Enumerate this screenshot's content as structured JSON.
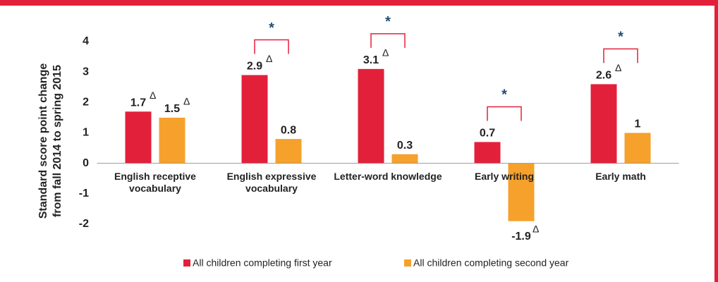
{
  "chart_data": {
    "type": "bar",
    "y_label": [
      "Standard score point change",
      "from fall 2014 to spring 2015"
    ],
    "categories": [
      "English receptive vocabulary",
      "English expressive vocabulary",
      "Letter-word knowledge",
      "Early writing",
      "Early math"
    ],
    "series": [
      {
        "name": "All children completing first year",
        "color": "#e3203a",
        "values": [
          1.7,
          2.9,
          3.1,
          0.7,
          2.6
        ],
        "delta": [
          true,
          true,
          true,
          false,
          true
        ]
      },
      {
        "name": "All children completing second year",
        "color": "#f5a12c",
        "values": [
          1.5,
          0.8,
          0.3,
          -1.9,
          1.0
        ],
        "delta": [
          true,
          false,
          false,
          true,
          false
        ]
      }
    ],
    "significant": [
      false,
      true,
      true,
      true,
      true
    ],
    "annotations": {
      "delta": "Δ",
      "significance": "*"
    },
    "ylim": [
      -2.5,
      4.5
    ],
    "yticks": [
      -2,
      -1,
      0,
      1,
      2,
      3,
      4
    ],
    "legend": "bottom"
  }
}
